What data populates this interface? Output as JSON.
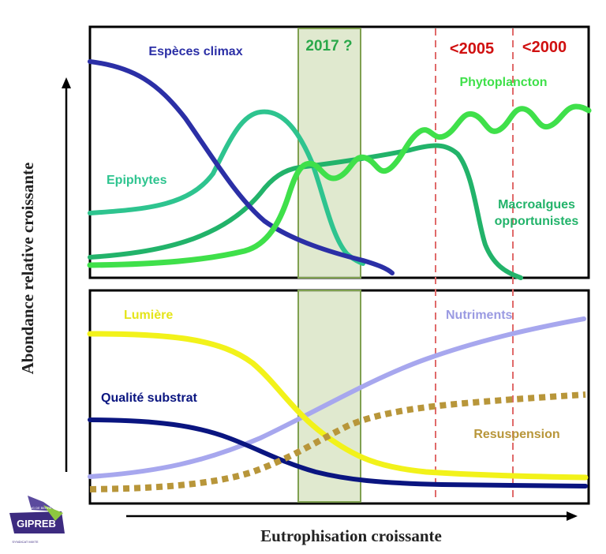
{
  "top_panel": {
    "year_highlight": "2017 ?",
    "markers": [
      "<2005",
      "<2000"
    ],
    "series": {
      "climax": "Espèces climax",
      "epiphytes": "Epiphytes",
      "phytoplankton": "Phytoplancton",
      "macroalgae_line1": "Macroalgues",
      "macroalgae_line2": "opportunistes"
    }
  },
  "bottom_panel": {
    "series": {
      "light": "Lumière",
      "nutrients": "Nutriments",
      "substrate": "Qualité substrat",
      "resuspension": "Resuspension"
    }
  },
  "axes": {
    "y_title": "Abondance relative croissante",
    "x_title": "Eutrophisation croissante"
  },
  "logo": {
    "name": "GIPREB",
    "tagline_top": "ÉTANG DE BERRE",
    "tagline_bottom": "SYNDICAT MIXTE"
  },
  "colors": {
    "climax": "#2b2fa6",
    "epiphytes": "#2ec48f",
    "phytoplankton": "#3fe04a",
    "macroalgae": "#22b36a",
    "light": "#f2f21a",
    "nutrients": "#a7a7ee",
    "substrate": "#0a1580",
    "resuspension": "#b8963a",
    "year_box": "#7fa050",
    "markers": "#e06a6a",
    "marker_text": "#d01010"
  }
}
